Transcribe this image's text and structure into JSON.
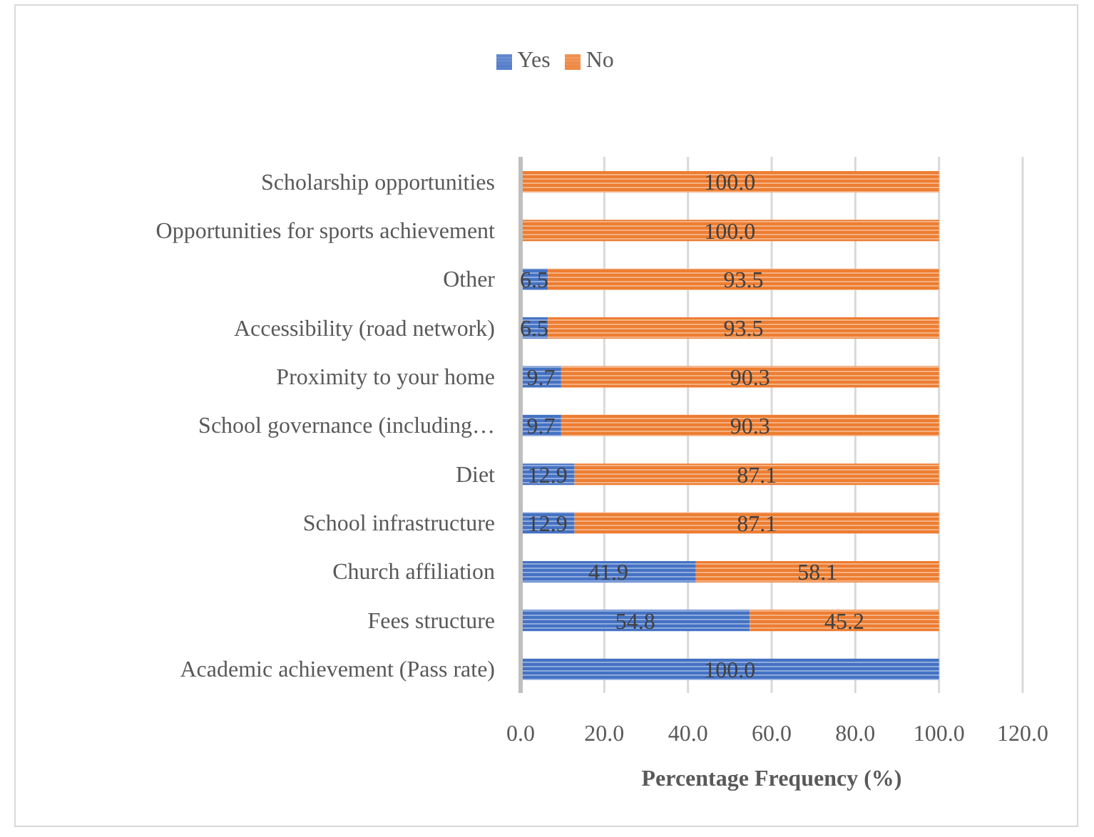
{
  "chart_data": {
    "type": "bar",
    "orientation": "horizontal",
    "stacked": true,
    "categories": [
      "Scholarship opportunities",
      "Opportunities for sports achievement",
      "Other",
      "Accessibility (road network)",
      "Proximity to your home",
      "School governance (including…",
      "Diet",
      "School infrastructure",
      "Church affiliation",
      "Fees structure",
      "Academic achievement (Pass rate)"
    ],
    "series": [
      {
        "name": "Yes",
        "color": "#4472c4",
        "values": [
          null,
          null,
          6.5,
          6.5,
          9.7,
          9.7,
          12.9,
          12.9,
          41.9,
          54.8,
          100.0
        ],
        "value_labels": [
          null,
          null,
          "6.5",
          "6.5",
          "9.7",
          "9.7",
          "12.9",
          "12.9",
          "41.9",
          "54.8",
          "100.0"
        ]
      },
      {
        "name": "No",
        "color": "#ed7d31",
        "values": [
          100.0,
          100.0,
          93.5,
          93.5,
          90.3,
          90.3,
          87.1,
          87.1,
          58.1,
          45.2,
          null
        ],
        "value_labels": [
          "100.0",
          "100.0",
          "93.5",
          "93.5",
          "90.3",
          "90.3",
          "87.1",
          "87.1",
          "58.1",
          "45.2",
          null
        ]
      }
    ],
    "xlabel": "Percentage Frequency (%)",
    "xlim": [
      0,
      120
    ],
    "xticks": [
      {
        "value": 0,
        "label": "0.0"
      },
      {
        "value": 20,
        "label": "20.0"
      },
      {
        "value": 40,
        "label": "40.0"
      },
      {
        "value": 60,
        "label": "60.0"
      },
      {
        "value": 80,
        "label": "80.0"
      },
      {
        "value": 100,
        "label": "100.0"
      },
      {
        "value": 120,
        "label": "120.0"
      }
    ],
    "grid": "x",
    "legend": "top"
  }
}
